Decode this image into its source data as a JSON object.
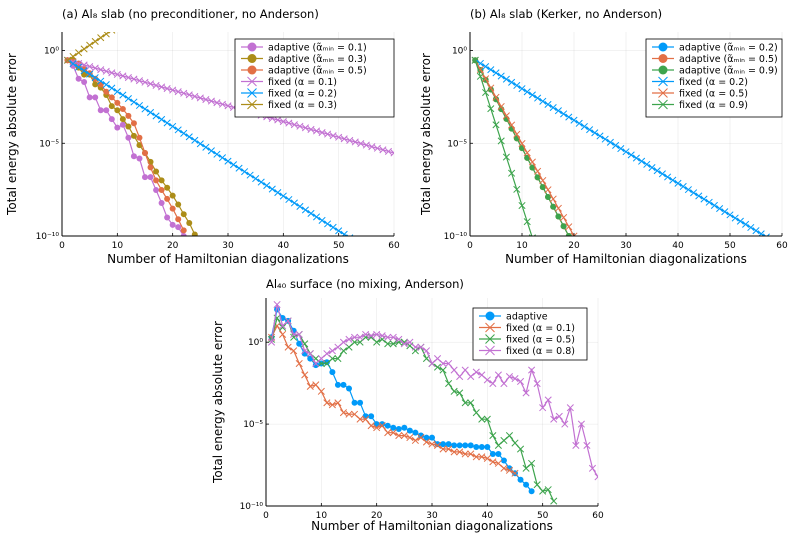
{
  "chart_data": [
    {
      "type": "line",
      "title": "(a) Al₈ slab (no preconditioner, no Anderson)",
      "xlabel": "Number of Hamiltonian diagonalizations",
      "ylabel": "Total energy absolute error",
      "xlim": [
        0,
        60
      ],
      "ylim": [
        1e-10,
        10
      ],
      "yscale": "log",
      "xticks": [
        0,
        10,
        20,
        30,
        40,
        50,
        60
      ],
      "yticks": [
        {
          "v": 1,
          "label": "10⁰"
        },
        {
          "v": 1e-05,
          "label": "10⁻⁵"
        },
        {
          "v": 1e-10,
          "label": "10⁻¹⁰"
        }
      ],
      "grid": true,
      "legend": "top-right",
      "series": [
        {
          "name": "adaptive (α̃ₘᵢₙ = 0.1)",
          "color": "#c271d2",
          "marker": "circle",
          "x": [
            1,
            2,
            3,
            4,
            5,
            6,
            7,
            8,
            9,
            10,
            11,
            12,
            13,
            14,
            15,
            16,
            17,
            18,
            19,
            20,
            21,
            22
          ],
          "y": [
            0.3,
            0.15,
            0.03,
            0.02,
            0.003,
            0.003,
            0.0006,
            0.0006,
            0.0002,
            7e-05,
            0.0001,
            2e-05,
            2e-06,
            1.5e-06,
            1.5e-07,
            1.5e-07,
            3e-08,
            6e-09,
            1e-09,
            4e-10,
            3e-10,
            1e-10
          ]
        },
        {
          "name": "adaptive (α̃ₘᵢₙ = 0.3)",
          "color": "#ac8d18",
          "marker": "circle",
          "x": [
            1,
            2,
            3,
            4,
            5,
            6,
            7,
            8,
            9,
            10,
            11,
            12,
            13,
            14,
            15,
            16,
            17,
            18,
            19,
            20,
            21,
            22,
            23,
            24
          ],
          "y": [
            0.3,
            0.3,
            0.12,
            0.05,
            0.05,
            0.015,
            0.01,
            0.004,
            0.001,
            0.0006,
            0.0002,
            8e-05,
            2.5e-05,
            8e-06,
            3e-06,
            1e-06,
            3e-07,
            1e-07,
            4e-08,
            1.5e-08,
            5e-09,
            1.5e-09,
            5e-10,
            1.2e-10
          ]
        },
        {
          "name": "adaptive (α̃ₘᵢₙ = 0.5)",
          "color": "#e26f46",
          "marker": "circle",
          "x": [
            1,
            2,
            3,
            4,
            5,
            6,
            7,
            8,
            9,
            10,
            11,
            12,
            13,
            14,
            15,
            16,
            17,
            18,
            19,
            20,
            21,
            22
          ],
          "y": [
            0.3,
            0.25,
            0.2,
            0.1,
            0.06,
            0.03,
            0.015,
            0.006,
            0.003,
            0.0015,
            0.0007,
            0.0003,
            0.00012,
            2e-05,
            3e-06,
            5e-07,
            1e-07,
            3e-08,
            1e-08,
            3e-09,
            8e-10,
            2e-10
          ]
        },
        {
          "name": "fixed (α = 0.1)",
          "color": "#c271d2",
          "marker": "x",
          "x": [
            1,
            60
          ],
          "y": [
            0.3,
            3e-06
          ]
        },
        {
          "name": "fixed (α = 0.2)",
          "color": "#009af9",
          "marker": "x",
          "x": [
            1,
            52
          ],
          "y": [
            0.3,
            8e-11
          ]
        },
        {
          "name": "fixed (α = 0.3)",
          "color": "#ac8d18",
          "marker": "x",
          "x": [
            1,
            10
          ],
          "y": [
            0.3,
            20
          ]
        }
      ]
    },
    {
      "type": "line",
      "title": "(b) Al₈ slab (Kerker, no Anderson)",
      "xlabel": "Number of Hamiltonian diagonalizations",
      "ylabel": "Total energy absolute error",
      "xlim": [
        0,
        60
      ],
      "ylim": [
        1e-10,
        10
      ],
      "yscale": "log",
      "xticks": [
        0,
        10,
        20,
        30,
        40,
        50,
        60
      ],
      "yticks": [
        {
          "v": 1,
          "label": "10⁰"
        },
        {
          "v": 1e-05,
          "label": "10⁻⁵"
        },
        {
          "v": 1e-10,
          "label": "10⁻¹⁰"
        }
      ],
      "grid": true,
      "legend": "top-right",
      "series": [
        {
          "name": "adaptive (α̃ₘᵢₙ = 0.2)",
          "color": "#009af9",
          "marker": "circle",
          "x": [],
          "y": []
        },
        {
          "name": "adaptive (α̃ₘᵢₙ = 0.5)",
          "color": "#e26f46",
          "marker": "circle",
          "x": [
            1,
            19
          ],
          "y": [
            0.3,
            1e-10
          ]
        },
        {
          "name": "adaptive (α̃ₘᵢₙ = 0.9)",
          "color": "#3da44d",
          "marker": "circle",
          "x": [
            1,
            19
          ],
          "y": [
            0.3,
            1e-10
          ]
        },
        {
          "name": "fixed (α = 0.2)",
          "color": "#009af9",
          "marker": "x",
          "x": [
            1,
            58
          ],
          "y": [
            0.3,
            6e-11
          ]
        },
        {
          "name": "fixed (α = 0.5)",
          "color": "#e26f46",
          "marker": "x",
          "x": [
            1,
            20
          ],
          "y": [
            0.3,
            1e-10
          ]
        },
        {
          "name": "fixed (α = 0.9)",
          "color": "#3da44d",
          "marker": "x",
          "x": [
            1,
            12
          ],
          "y": [
            0.3,
            8e-11
          ]
        }
      ]
    },
    {
      "type": "line",
      "title": "Al₄₀ surface (no mixing, Anderson)",
      "xlabel": "Number of Hamiltonian diagonalizations",
      "ylabel": "Total energy absolute error",
      "xlim": [
        0,
        60
      ],
      "ylim": [
        1e-10,
        500
      ],
      "yscale": "log",
      "xticks": [
        0,
        10,
        20,
        30,
        40,
        50,
        60
      ],
      "yticks": [
        {
          "v": 1,
          "label": "10⁰"
        },
        {
          "v": 1e-05,
          "label": "10⁻⁵"
        },
        {
          "v": 1e-10,
          "label": "10⁻¹⁰"
        }
      ],
      "grid": true,
      "legend": "top-right",
      "series": [
        {
          "name": "adaptive",
          "color": "#009af9",
          "marker": "circle",
          "x": [
            1,
            2,
            3,
            4,
            5,
            6,
            7,
            8,
            9,
            10,
            11,
            12,
            13,
            14,
            15,
            16,
            17,
            18,
            19,
            20,
            21,
            22,
            23,
            24,
            25,
            26,
            27,
            28,
            29,
            30,
            31,
            32,
            33,
            34,
            35,
            36,
            37,
            38,
            39,
            40,
            41,
            42,
            43,
            44,
            45,
            46,
            47,
            48
          ],
          "y": [
            2,
            100,
            30,
            20,
            5,
            0.8,
            0.2,
            0.1,
            0.04,
            0.05,
            0.06,
            0.015,
            0.0025,
            0.0025,
            0.0015,
            0.0002,
            0.0002,
            3e-05,
            3e-05,
            1e-05,
            1e-05,
            8e-06,
            6e-06,
            5e-06,
            6e-06,
            4e-06,
            3e-06,
            2e-06,
            1.5e-06,
            1.5e-06,
            6e-07,
            6e-07,
            6e-07,
            5e-07,
            5e-07,
            5e-07,
            5e-07,
            4e-07,
            4e-07,
            4e-07,
            1.5e-07,
            1.5e-07,
            6e-08,
            2e-08,
            1e-08,
            4e-09,
            2e-09,
            8e-10
          ]
        },
        {
          "name": "fixed (α = 0.1)",
          "color": "#e26f46",
          "marker": "x",
          "x": [
            1,
            2,
            3,
            4,
            5,
            6,
            7,
            8,
            9,
            10,
            11,
            12,
            13,
            14,
            15,
            16,
            17,
            18,
            19,
            20,
            21,
            22,
            23,
            24,
            25,
            26,
            27,
            28,
            29,
            30,
            31,
            32,
            33,
            34,
            35,
            36,
            37,
            38,
            39,
            40,
            41,
            42,
            43,
            44,
            45
          ],
          "y": [
            2,
            10,
            3,
            0.5,
            0.3,
            0.05,
            0.01,
            0.002,
            0.0025,
            0.001,
            0.0002,
            0.00015,
            0.0002,
            5e-05,
            4e-05,
            4e-05,
            2e-05,
            2e-05,
            8e-06,
            6e-06,
            8e-06,
            3e-06,
            3e-06,
            2e-06,
            2e-06,
            1.5e-06,
            1e-06,
            1.5e-06,
            8e-07,
            6e-07,
            5e-07,
            3e-07,
            3e-07,
            2e-07,
            2e-07,
            1.5e-07,
            1.5e-07,
            1e-07,
            1e-07,
            8e-08,
            5e-08,
            4e-08,
            2e-08,
            1.5e-08,
            1e-08
          ]
        },
        {
          "name": "fixed (α = 0.5)",
          "color": "#3da44d",
          "marker": "x",
          "x": [
            1,
            2,
            3,
            4,
            5,
            6,
            7,
            8,
            9,
            10,
            11,
            12,
            13,
            14,
            15,
            16,
            17,
            18,
            19,
            20,
            21,
            22,
            23,
            24,
            25,
            26,
            27,
            28,
            29,
            30,
            31,
            32,
            33,
            34,
            35,
            36,
            37,
            38,
            39,
            40,
            41,
            42,
            43,
            44,
            45,
            46,
            47,
            48,
            49,
            50,
            51,
            52
          ],
          "y": [
            1.5,
            30,
            8,
            20,
            2,
            3,
            0.8,
            0.2,
            0.1,
            0.05,
            0.05,
            0.1,
            0.1,
            0.3,
            0.5,
            1,
            1,
            2,
            2,
            1,
            1.5,
            0.8,
            0.8,
            1,
            1,
            0.6,
            0.3,
            0.5,
            0.1,
            0.05,
            0.03,
            0.02,
            0.003,
            0.001,
            0.0008,
            0.0002,
            0.0002,
            5e-05,
            2e-05,
            2e-05,
            2e-06,
            5e-07,
            1e-06,
            2e-06,
            7e-07,
            3e-07,
            2e-08,
            4e-08,
            2e-09,
            8e-10,
            1e-09,
            2e-10
          ]
        },
        {
          "name": "fixed (α = 0.8)",
          "color": "#c271d2",
          "marker": "x",
          "x": [
            1,
            2,
            3,
            4,
            5,
            6,
            7,
            8,
            9,
            10,
            11,
            12,
            13,
            14,
            15,
            16,
            17,
            18,
            19,
            20,
            21,
            22,
            23,
            24,
            25,
            26,
            27,
            28,
            29,
            30,
            31,
            32,
            33,
            34,
            35,
            36,
            37,
            38,
            39,
            40,
            41,
            42,
            43,
            44,
            45,
            46,
            47,
            48,
            49,
            50,
            51,
            52,
            53,
            54,
            55,
            56,
            57,
            58,
            59,
            60
          ],
          "y": [
            1,
            200,
            10,
            20,
            3,
            3,
            0.3,
            0.2,
            0.05,
            0.1,
            0.2,
            0.3,
            0.5,
            1,
            1.5,
            2,
            2,
            3,
            2.5,
            3,
            2.5,
            2,
            2,
            1.5,
            0.8,
            1,
            0.5,
            0.5,
            0.3,
            0.05,
            0.1,
            0.05,
            0.05,
            0.02,
            0.008,
            0.02,
            0.008,
            0.015,
            0.01,
            0.005,
            0.003,
            0.01,
            0.003,
            0.008,
            0.006,
            0.004,
            0.0008,
            0.02,
            0.003,
            0.0001,
            0.0003,
            2e-05,
            3e-05,
            1e-05,
            0.0001,
            5e-07,
            1e-05,
            5e-07,
            2e-08,
            6e-09
          ]
        }
      ]
    }
  ]
}
